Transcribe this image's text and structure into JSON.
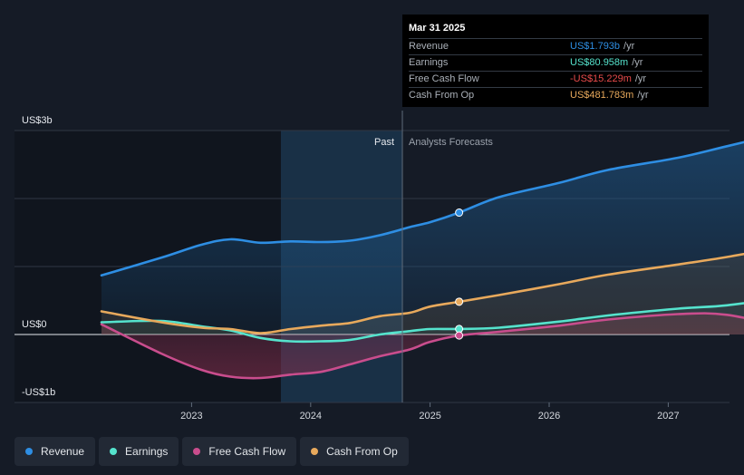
{
  "chart_data": {
    "type": "line",
    "y_axis_labels": [
      "US$3b",
      "US$0",
      "-US$1b"
    ],
    "ylim": [
      -1,
      3
    ],
    "x_ticks": [
      "2023",
      "2024",
      "2025",
      "2026",
      "2027"
    ],
    "divider": {
      "date": "2025-03-31",
      "past_label": "Past",
      "forecast_label": "Analysts Forecasts"
    },
    "series": [
      {
        "name": "Revenue",
        "color": "#2e8ee3",
        "points": [
          [
            "2022-03-31",
            0.87
          ],
          [
            "2022-09-30",
            1.13
          ],
          [
            "2023-01-31",
            1.32
          ],
          [
            "2023-04-30",
            1.4
          ],
          [
            "2023-07-31",
            1.35
          ],
          [
            "2023-10-31",
            1.37
          ],
          [
            "2024-01-31",
            1.36
          ],
          [
            "2024-04-30",
            1.38
          ],
          [
            "2024-07-31",
            1.46
          ],
          [
            "2024-10-31",
            1.58
          ],
          [
            "2024-12-31",
            1.65
          ],
          [
            "2025-03-31",
            1.793
          ],
          [
            "2025-07-31",
            2.02
          ],
          [
            "2026-01-31",
            2.23
          ],
          [
            "2026-06-30",
            2.42
          ],
          [
            "2027-01-31",
            2.6
          ],
          [
            "2027-06-30",
            2.77
          ],
          [
            "2027-12-31",
            2.98
          ]
        ]
      },
      {
        "name": "Earnings",
        "color": "#55e3cd",
        "points": [
          [
            "2022-03-31",
            0.18
          ],
          [
            "2022-09-30",
            0.2
          ],
          [
            "2023-01-31",
            0.12
          ],
          [
            "2023-04-30",
            0.06
          ],
          [
            "2023-07-31",
            -0.05
          ],
          [
            "2023-10-31",
            -0.1
          ],
          [
            "2024-01-31",
            -0.1
          ],
          [
            "2024-04-30",
            -0.08
          ],
          [
            "2024-07-31",
            0.0
          ],
          [
            "2024-10-31",
            0.05
          ],
          [
            "2024-12-31",
            0.08
          ],
          [
            "2025-03-31",
            0.081
          ],
          [
            "2025-07-31",
            0.1
          ],
          [
            "2026-01-31",
            0.19
          ],
          [
            "2026-06-30",
            0.28
          ],
          [
            "2027-01-31",
            0.38
          ],
          [
            "2027-06-30",
            0.43
          ],
          [
            "2027-12-31",
            0.55
          ]
        ]
      },
      {
        "name": "Free Cash Flow",
        "color": "#c94d8d",
        "points": [
          [
            "2022-03-31",
            0.15
          ],
          [
            "2022-09-30",
            -0.28
          ],
          [
            "2023-01-31",
            -0.52
          ],
          [
            "2023-04-30",
            -0.62
          ],
          [
            "2023-07-31",
            -0.64
          ],
          [
            "2023-10-31",
            -0.59
          ],
          [
            "2024-01-31",
            -0.55
          ],
          [
            "2024-04-30",
            -0.44
          ],
          [
            "2024-07-31",
            -0.32
          ],
          [
            "2024-10-31",
            -0.22
          ],
          [
            "2024-12-31",
            -0.11
          ],
          [
            "2025-03-31",
            -0.015
          ],
          [
            "2025-07-31",
            0.04
          ],
          [
            "2026-01-31",
            0.13
          ],
          [
            "2026-06-30",
            0.22
          ],
          [
            "2027-01-31",
            0.3
          ],
          [
            "2027-06-30",
            0.29
          ],
          [
            "2027-12-31",
            0.1
          ]
        ]
      },
      {
        "name": "Cash From Op",
        "color": "#e8a95c",
        "points": [
          [
            "2022-03-31",
            0.34
          ],
          [
            "2022-09-30",
            0.18
          ],
          [
            "2023-01-31",
            0.1
          ],
          [
            "2023-04-30",
            0.08
          ],
          [
            "2023-07-31",
            0.02
          ],
          [
            "2023-10-31",
            0.08
          ],
          [
            "2024-01-31",
            0.13
          ],
          [
            "2024-04-30",
            0.17
          ],
          [
            "2024-07-31",
            0.27
          ],
          [
            "2024-10-31",
            0.32
          ],
          [
            "2024-12-31",
            0.41
          ],
          [
            "2025-03-31",
            0.482
          ],
          [
            "2025-07-31",
            0.58
          ],
          [
            "2026-01-31",
            0.74
          ],
          [
            "2026-06-30",
            0.88
          ],
          [
            "2027-01-31",
            1.03
          ],
          [
            "2027-06-30",
            1.14
          ],
          [
            "2027-12-31",
            1.3
          ]
        ]
      }
    ]
  },
  "tooltip": {
    "date": "Mar 31 2025",
    "rows": [
      {
        "label": "Revenue",
        "value": "US$1.793b",
        "unit": "/yr",
        "color": "#2e8ee3"
      },
      {
        "label": "Earnings",
        "value": "US$80.958m",
        "unit": "/yr",
        "color": "#55e3cd"
      },
      {
        "label": "Free Cash Flow",
        "value": "-US$15.229m",
        "unit": "/yr",
        "color": "#e84b4b"
      },
      {
        "label": "Cash From Op",
        "value": "US$481.783m",
        "unit": "/yr",
        "color": "#e8a95c"
      }
    ]
  },
  "legend": [
    {
      "label": "Revenue",
      "color": "#2e8ee3"
    },
    {
      "label": "Earnings",
      "color": "#55e3cd"
    },
    {
      "label": "Free Cash Flow",
      "color": "#c94d8d"
    },
    {
      "label": "Cash From Op",
      "color": "#e8a95c"
    }
  ]
}
